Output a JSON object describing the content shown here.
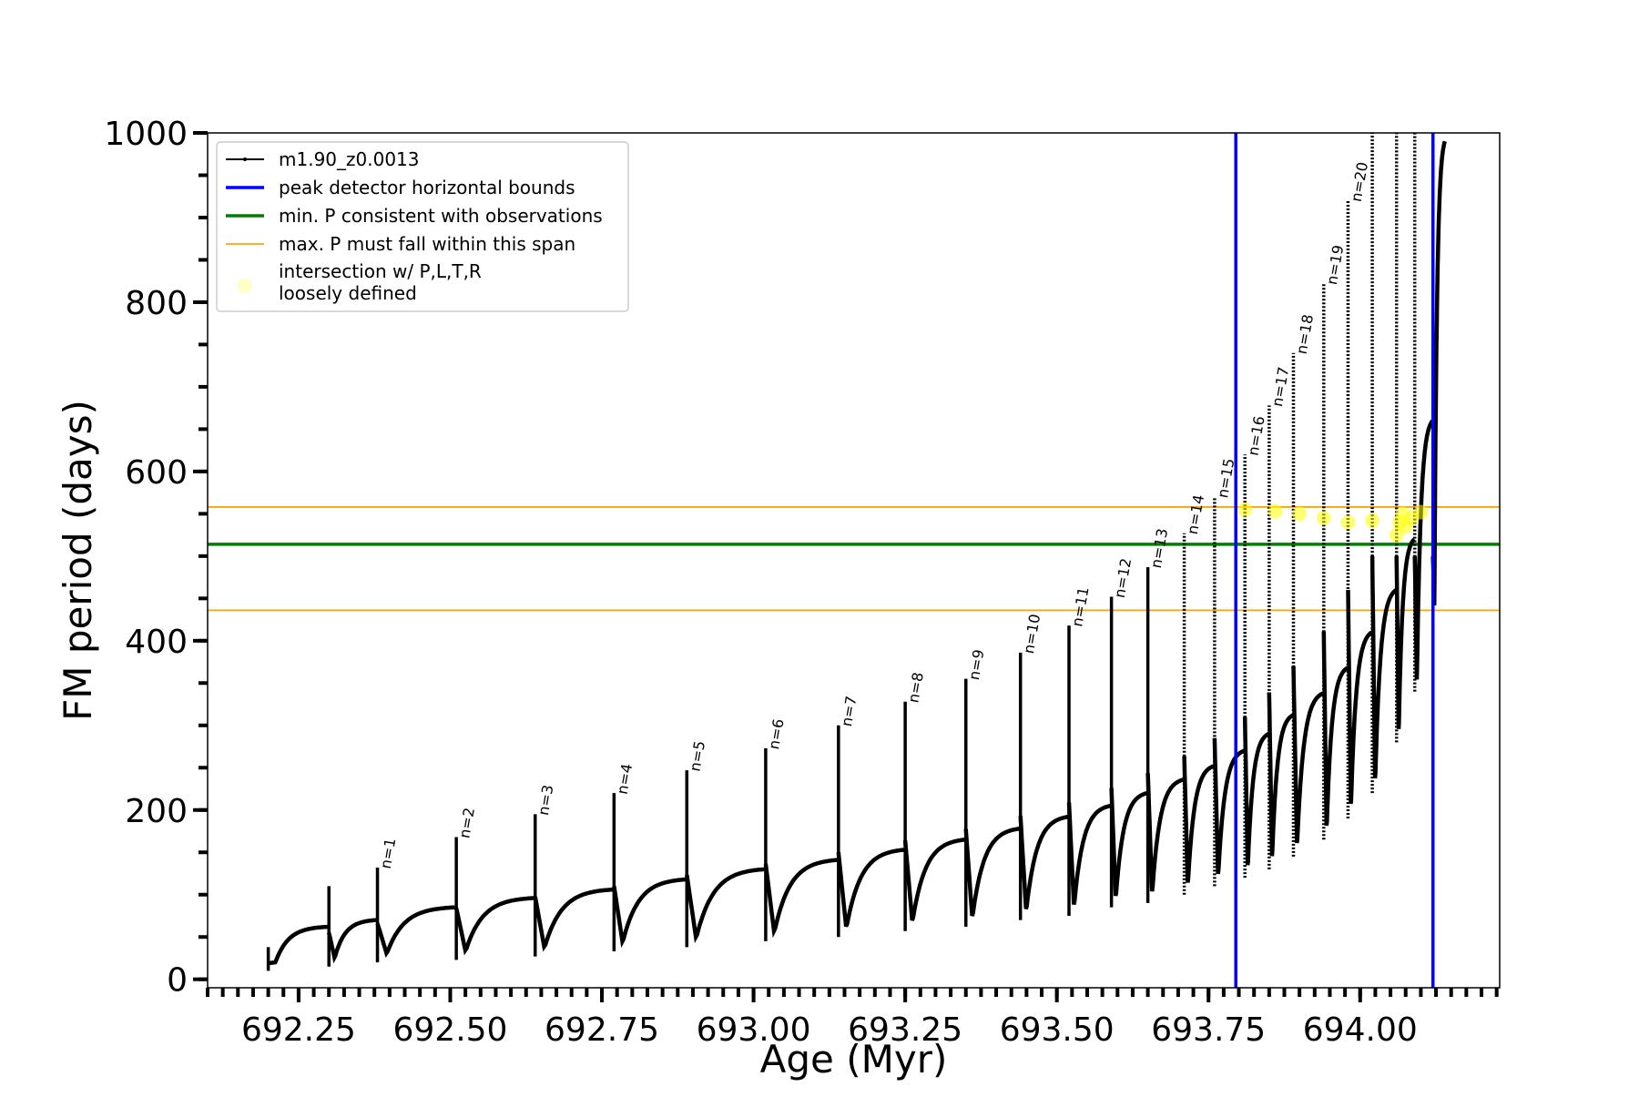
{
  "chart_data": {
    "type": "line",
    "title": "",
    "xlabel": "Age (Myr)",
    "ylabel": "FM period (days)",
    "xlim": [
      692.1,
      694.23
    ],
    "ylim": [
      -10,
      1000
    ],
    "x_ticks": [
      692.25,
      692.5,
      692.75,
      693.0,
      693.25,
      693.5,
      693.75,
      694.0
    ],
    "x_tick_labels": [
      "692.25",
      "692.50",
      "692.75",
      "693.00",
      "693.25",
      "693.50",
      "693.75",
      "694.00"
    ],
    "y_ticks": [
      0,
      200,
      400,
      600,
      800,
      1000
    ],
    "y_tick_labels": [
      "0",
      "200",
      "400",
      "600",
      "800",
      "1000"
    ],
    "grid": false,
    "legend_position": "top-left",
    "legend": [
      {
        "label": "m1.90_z0.0013",
        "style": "line-marker",
        "color": "#000000"
      },
      {
        "label": "peak detector horizontal bounds",
        "style": "line",
        "color": "#0000ff"
      },
      {
        "label": "min. P consistent with observations",
        "style": "line",
        "color": "#008000"
      },
      {
        "label": "max. P must fall within this span",
        "style": "line",
        "color": "#ffa500"
      },
      {
        "label": "intersection w/ P,L,T,R\nloosely defined",
        "style": "marker",
        "color": "#ffff99"
      }
    ],
    "series": [
      {
        "name": "m1.90_z0.0013",
        "color": "#000000",
        "cycle_starts": [
          692.2,
          692.3,
          692.38,
          692.51,
          692.64,
          692.77,
          692.89,
          693.02,
          693.14,
          693.25,
          693.35,
          693.44,
          693.52,
          693.59,
          693.65,
          693.71,
          693.76,
          693.81,
          693.85,
          693.89,
          693.94,
          693.98,
          694.02,
          694.06,
          694.09,
          694.12
        ],
        "cycle_peaks": [
          38,
          110,
          132,
          168,
          195,
          220,
          247,
          273,
          300,
          328,
          355,
          386,
          418,
          452,
          487,
          527,
          570,
          620,
          678,
          740,
          822,
          920,
          1000,
          1000,
          1000,
          1000
        ],
        "cycle_mins": [
          20,
          25,
          30,
          33,
          37,
          43,
          48,
          55,
          60,
          67,
          72,
          80,
          85,
          95,
          100,
          110,
          120,
          130,
          140,
          155,
          175,
          200,
          230,
          290,
          350,
          440
        ],
        "cycle_ends": [
          62,
          70,
          85,
          96,
          106,
          118,
          130,
          141,
          153,
          165,
          178,
          192,
          205,
          220,
          236,
          252,
          270,
          290,
          312,
          338,
          368,
          410,
          460,
          520,
          660,
          990
        ]
      }
    ],
    "peak_labels": [
      {
        "text": "n=1",
        "x": 692.38,
        "y": 132
      },
      {
        "text": "n=2",
        "x": 692.51,
        "y": 168
      },
      {
        "text": "n=3",
        "x": 692.64,
        "y": 195
      },
      {
        "text": "n=4",
        "x": 692.77,
        "y": 220
      },
      {
        "text": "n=5",
        "x": 692.89,
        "y": 247
      },
      {
        "text": "n=6",
        "x": 693.02,
        "y": 273
      },
      {
        "text": "n=7",
        "x": 693.14,
        "y": 300
      },
      {
        "text": "n=8",
        "x": 693.25,
        "y": 328
      },
      {
        "text": "n=9",
        "x": 693.35,
        "y": 355
      },
      {
        "text": "n=10",
        "x": 693.44,
        "y": 386
      },
      {
        "text": "n=11",
        "x": 693.52,
        "y": 418
      },
      {
        "text": "n=12",
        "x": 693.59,
        "y": 452
      },
      {
        "text": "n=13",
        "x": 693.65,
        "y": 487
      },
      {
        "text": "n=14",
        "x": 693.71,
        "y": 527
      },
      {
        "text": "n=15",
        "x": 693.76,
        "y": 570
      },
      {
        "text": "n=16",
        "x": 693.81,
        "y": 620
      },
      {
        "text": "n=17",
        "x": 693.85,
        "y": 678
      },
      {
        "text": "n=18",
        "x": 693.89,
        "y": 740
      },
      {
        "text": "n=19",
        "x": 693.94,
        "y": 822
      },
      {
        "text": "n=20",
        "x": 693.98,
        "y": 920
      }
    ],
    "vertical_lines": [
      {
        "name": "peak detector horizontal bounds",
        "x": 693.795,
        "color": "#0000ff"
      },
      {
        "name": "peak detector horizontal bounds",
        "x": 694.12,
        "color": "#0000ff"
      }
    ],
    "horizontal_lines": [
      {
        "name": "min. P consistent with observations",
        "y": 514,
        "color": "#008000"
      },
      {
        "name": "max. P must fall within this span",
        "y": 558,
        "color": "#ffa500"
      },
      {
        "name": "max. P must fall within this span",
        "y": 436,
        "color": "#ffa500"
      }
    ],
    "intersection_points": [
      {
        "x": 693.81,
        "y": 555
      },
      {
        "x": 693.86,
        "y": 553
      },
      {
        "x": 693.9,
        "y": 550
      },
      {
        "x": 693.94,
        "y": 545
      },
      {
        "x": 693.98,
        "y": 540
      },
      {
        "x": 694.02,
        "y": 542
      },
      {
        "x": 694.06,
        "y": 525
      },
      {
        "x": 694.065,
        "y": 540
      },
      {
        "x": 694.07,
        "y": 550
      },
      {
        "x": 694.075,
        "y": 535
      },
      {
        "x": 694.085,
        "y": 545
      },
      {
        "x": 694.1,
        "y": 552
      }
    ]
  }
}
